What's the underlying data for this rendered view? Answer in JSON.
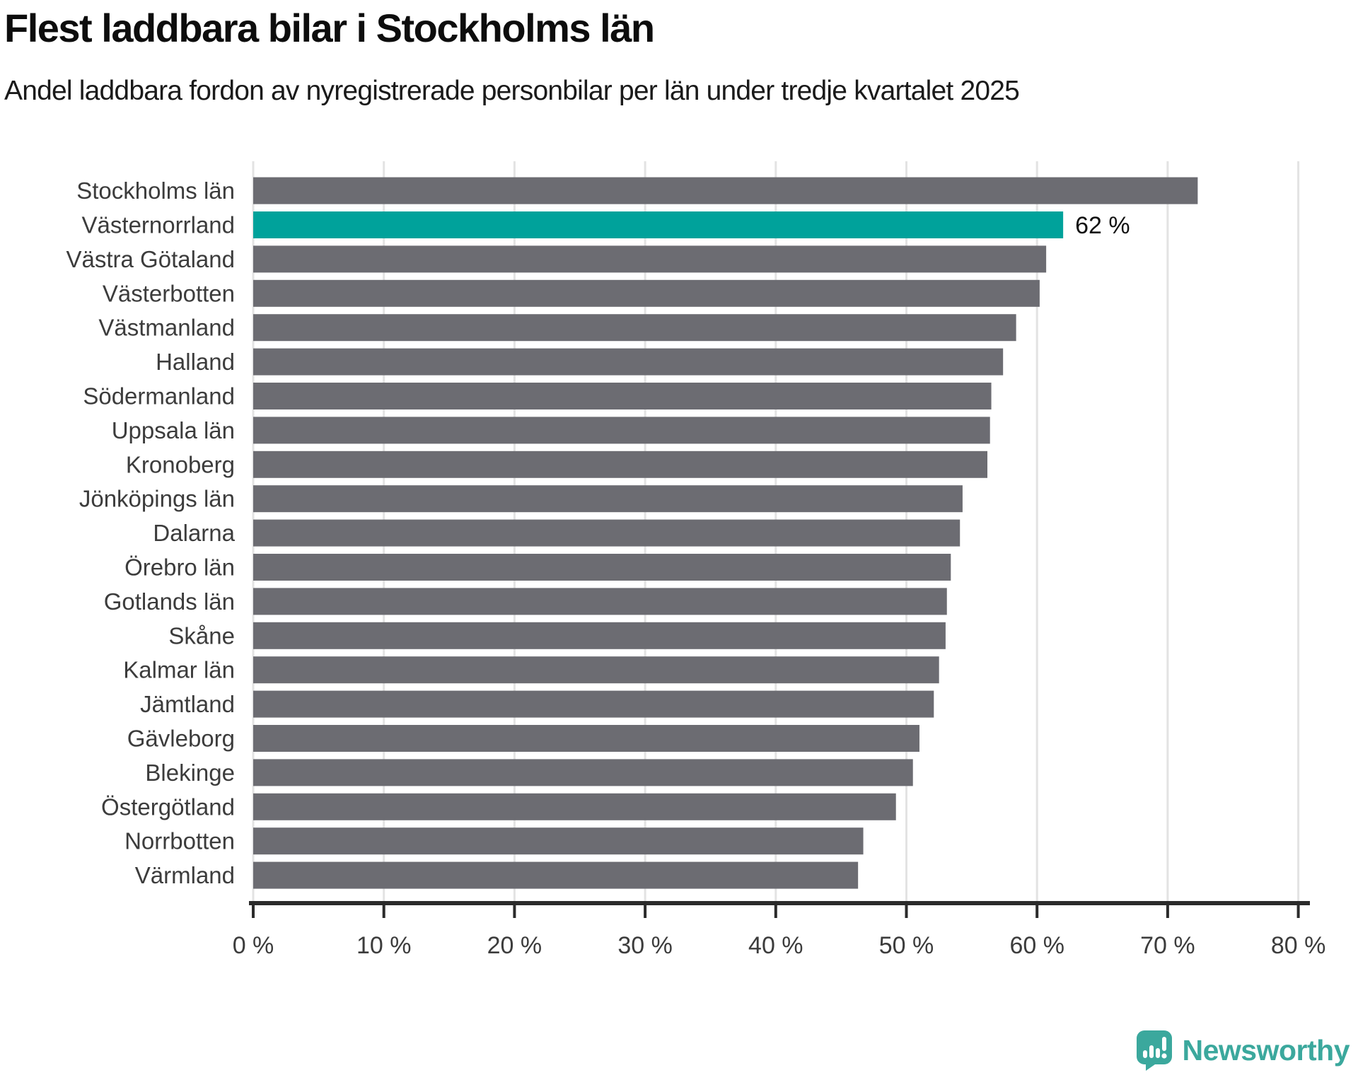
{
  "header": {
    "title": "Flest laddbara bilar i Stockholms län",
    "subtitle": "Andel laddbara fordon av nyregistrerade personbilar per län under tredje kvartalet 2025"
  },
  "chart_data": {
    "type": "bar",
    "orientation": "horizontal",
    "title": "Flest laddbara bilar i Stockholms län",
    "subtitle": "Andel laddbara fordon av nyregistrerade personbilar per län under tredje kvartalet 2025",
    "categories": [
      "Stockholms län",
      "Västernorrland",
      "Västra Götaland",
      "Västerbotten",
      "Västmanland",
      "Halland",
      "Södermanland",
      "Uppsala län",
      "Kronoberg",
      "Jönköpings län",
      "Dalarna",
      "Örebro län",
      "Gotlands län",
      "Skåne",
      "Kalmar län",
      "Jämtland",
      "Gävleborg",
      "Blekinge",
      "Östergötland",
      "Norrbotten",
      "Värmland"
    ],
    "values": [
      72.3,
      62.0,
      60.7,
      60.2,
      58.4,
      57.4,
      56.5,
      56.4,
      56.2,
      54.3,
      54.1,
      53.4,
      53.1,
      53.0,
      52.5,
      52.1,
      51.0,
      50.5,
      49.2,
      46.7,
      46.3
    ],
    "highlight": {
      "category": "Västernorrland",
      "index": 1,
      "value_label": "62 %"
    },
    "xlabel": "",
    "ylabel": "",
    "xlim": [
      0,
      80
    ],
    "x_tick_values": [
      0,
      10,
      20,
      30,
      40,
      50,
      60,
      70,
      80
    ],
    "x_tick_labels": [
      "0 %",
      "10 %",
      "20 %",
      "30 %",
      "40 %",
      "50 %",
      "60 %",
      "70 %",
      "80 %"
    ],
    "grid": "vertical-only",
    "legend": "none",
    "colors": {
      "bar": "#6c6c72",
      "highlight": "#00a29b",
      "grid": "#e3e3e3",
      "axis": "#2b2b2b",
      "tick_label": "#3c3c3c",
      "category_label": "#3c3c3c",
      "annotation": "#111111"
    }
  },
  "branding": {
    "logo_text": "Newsworthy",
    "logo_icon": "newsworthy-speech-bubble-chart-icon",
    "logo_color": "#3ba89d"
  }
}
